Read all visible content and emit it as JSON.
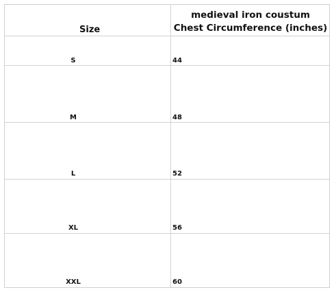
{
  "table": {
    "size_header": "Size",
    "title_line1": "medieval iron coustum",
    "title_line2": "Chest Circumference (inches)",
    "rows": [
      {
        "size": "S",
        "chest": "44"
      },
      {
        "size": "M",
        "chest": "48"
      },
      {
        "size": "L",
        "chest": "52"
      },
      {
        "size": "XL",
        "chest": "56"
      },
      {
        "size": "XXL",
        "chest": "60"
      }
    ]
  }
}
